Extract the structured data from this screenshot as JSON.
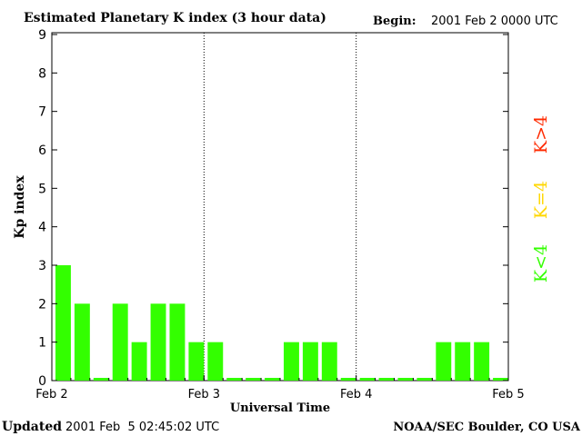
{
  "header": {
    "title": "Estimated Planetary K index (3 hour data)",
    "begin_label": "Begin:",
    "begin_value": "2001 Feb 2 0000 UTC"
  },
  "footer": {
    "updated_label": "Updated",
    "updated_value": "2001 Feb  5 02:45:02 UTC",
    "source": "NOAA/SEC Boulder, CO USA"
  },
  "legend": {
    "items": [
      {
        "label": "K<4",
        "color": "#33ff00"
      },
      {
        "label": "K=4",
        "color": "#ffd700"
      },
      {
        "label": "K>4",
        "color": "#ff2a00"
      }
    ]
  },
  "chart_data": {
    "type": "bar",
    "title": "Estimated Planetary K index (3 hour data)",
    "xlabel": "Universal Time",
    "ylabel": "Kp index",
    "ylim": [
      0,
      9
    ],
    "yticks": [
      "0",
      "1",
      "2",
      "3",
      "4",
      "5",
      "6",
      "7",
      "8",
      "9"
    ],
    "xticks": [
      "Feb 2",
      "Feb 3",
      "Feb 4",
      "Feb 5"
    ],
    "bar_color": "#33ff00",
    "values": [
      3,
      2,
      0,
      2,
      1,
      2,
      2,
      1,
      1,
      0,
      0,
      0,
      1,
      1,
      1,
      0,
      0,
      0,
      0,
      0,
      1,
      1,
      1,
      0
    ],
    "grid": false
  }
}
